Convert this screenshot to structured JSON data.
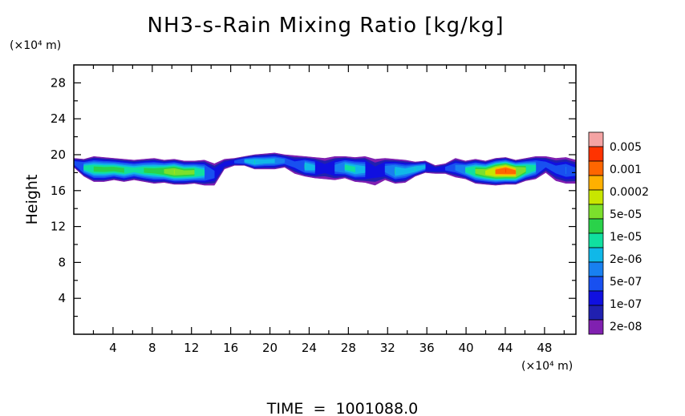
{
  "chart_data": {
    "type": "heatmap",
    "title": "NH3-s-Rain Mixing Ratio [kg/kg]",
    "ylabel": "Height",
    "x_unit_label": "(×10⁴ m)",
    "y_unit_label": "(×10⁴ m)",
    "xlim": [
      0,
      51.2
    ],
    "ylim": [
      0,
      30
    ],
    "x_ticks": [
      4,
      8,
      12,
      16,
      20,
      24,
      28,
      32,
      36,
      40,
      44,
      48
    ],
    "y_ticks": [
      4,
      8,
      12,
      16,
      20,
      24,
      28
    ],
    "footer": "TIME  =  1001088.0",
    "colorbar": {
      "labels": [
        "0.005",
        "0.001",
        "0.0002",
        "5e-05",
        "1e-05",
        "2e-06",
        "5e-07",
        "1e-07",
        "2e-08"
      ],
      "colors": [
        "#f4a3a3",
        "#ff3300",
        "#ff6600",
        "#ffb000",
        "#c8e600",
        "#7ce02c",
        "#2ad24a",
        "#10e0a0",
        "#10b8e8",
        "#1880f0",
        "#1850f0",
        "#1010e0",
        "#2020b0",
        "#8020b0"
      ]
    },
    "field": {
      "layer_bottom_km_e4": [
        18.6,
        17.6,
        17.0,
        17.0,
        17.2,
        17.0,
        17.2,
        17.0,
        16.8,
        16.9,
        16.7,
        16.7,
        16.8,
        16.6,
        16.6,
        18.4,
        18.8,
        18.8,
        18.4,
        18.4,
        18.4,
        18.6,
        17.9,
        17.6,
        17.4,
        17.3,
        17.2,
        17.4,
        17.0,
        16.9,
        16.6,
        17.2,
        16.8,
        16.9,
        17.6,
        18.0,
        17.9,
        17.9,
        17.5,
        17.3,
        16.8,
        16.7,
        16.6,
        16.7,
        16.7,
        17.1,
        17.3,
        18.0,
        17.1,
        16.8,
        16.8
      ],
      "layer_top_km_e4": [
        19.6,
        19.5,
        19.8,
        19.7,
        19.6,
        19.5,
        19.4,
        19.5,
        19.6,
        19.4,
        19.5,
        19.3,
        19.3,
        19.4,
        19.0,
        19.5,
        19.6,
        19.8,
        20.0,
        20.1,
        20.2,
        20.0,
        19.9,
        19.8,
        19.7,
        19.6,
        19.8,
        19.8,
        19.7,
        19.8,
        19.5,
        19.6,
        19.5,
        19.4,
        19.2,
        19.3,
        18.8,
        19.0,
        19.6,
        19.3,
        19.5,
        19.3,
        19.6,
        19.7,
        19.4,
        19.6,
        19.8,
        19.8,
        19.6,
        19.7,
        19.4
      ],
      "intensity_level": [
        3,
        6,
        7,
        7,
        7,
        7,
        6,
        7,
        7,
        8,
        9,
        8,
        8,
        6,
        3,
        2,
        3,
        5,
        6,
        5,
        5,
        4,
        3,
        6,
        5,
        2,
        4,
        6,
        6,
        5,
        2,
        4,
        6,
        5,
        6,
        5,
        2,
        3,
        4,
        6,
        8,
        9,
        11,
        12,
        11,
        8,
        6,
        3,
        3,
        4,
        3
      ]
    }
  }
}
